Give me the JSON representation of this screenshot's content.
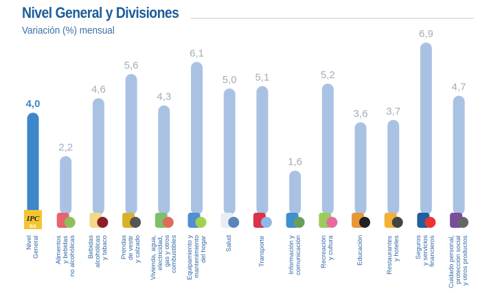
{
  "chart_data": {
    "type": "bar",
    "title": "Nivel General y Divisiones",
    "subtitle": "Variación (%) mensual",
    "categories": [
      "Nivel\nGeneral",
      "Alimentos\ny bebidas\nno alcohólicas",
      "Bebidas\nalcohólicas\ny tabaco",
      "Prendas\nde vestir\ny calzado",
      "Vivienda, agua,\nelectricidad,\ngas y otros\ncombustibles",
      "Equipamiento y\nmantenimiento\ndel hogar",
      "Salud",
      "Transporte",
      "Información y\ncomunicación",
      "Recreación\ny cultura",
      "Educación",
      "Restaurantes\ny hoteles",
      "Seguros\ny servicios\nfinancieros",
      "Cuidado personal,\nprotección social\ny otros productos"
    ],
    "values": [
      4.0,
      2.2,
      4.6,
      5.6,
      4.3,
      6.1,
      5.0,
      5.1,
      1.6,
      5.2,
      3.6,
      3.7,
      6.9,
      4.7
    ],
    "value_labels": [
      "4,0",
      "2,2",
      "4,6",
      "5,6",
      "4,3",
      "6,1",
      "5,0",
      "5,1",
      "1,6",
      "5,2",
      "3,6",
      "3,7",
      "6,9",
      "4,7"
    ],
    "icons": [
      "ipc-logo-icon",
      "food-icon",
      "bottles-icon",
      "clothing-icon",
      "house-icon",
      "washing-machine-icon",
      "doctor-icon",
      "car-plane-icon",
      "computer-icon",
      "theater-masks-icon",
      "school-icon",
      "restaurant-icon",
      "bank-icon",
      "personal-care-icon"
    ],
    "icon_text": "IPC BA",
    "highlight_index": 0,
    "colors": {
      "highlight": "#3b87c9",
      "bar": "#a9c2e4",
      "label": "#a3abb6",
      "highlight_label": "#3b87c9"
    },
    "ylim": [
      0,
      7
    ],
    "grid": false,
    "xlabel": "",
    "ylabel": ""
  }
}
